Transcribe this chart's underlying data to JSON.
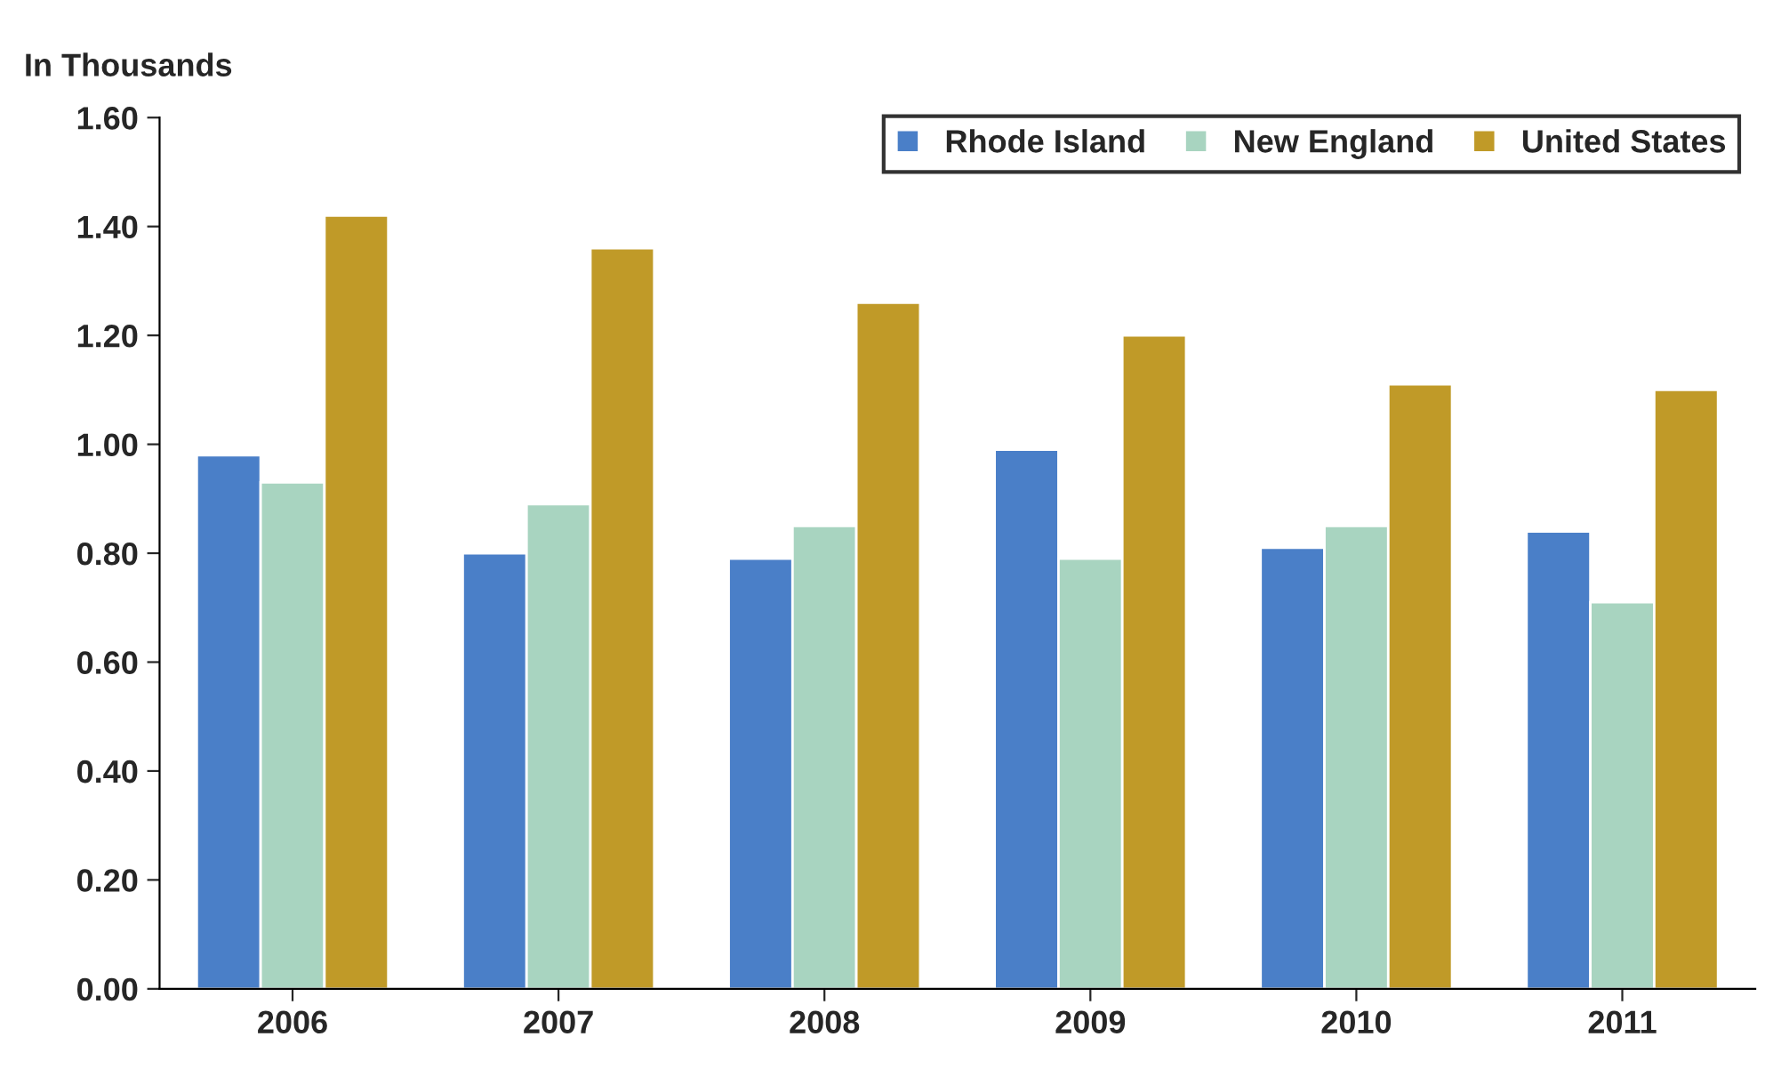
{
  "chart_data": {
    "type": "bar",
    "ylabel": "In Thousands",
    "categories": [
      "2006",
      "2007",
      "2008",
      "2009",
      "2010",
      "2011"
    ],
    "series": [
      {
        "name": "Rhode Island",
        "color": "#4a7fc8",
        "values": [
          0.98,
          0.8,
          0.79,
          0.99,
          0.81,
          0.84
        ]
      },
      {
        "name": "New England",
        "color": "#a8d4c0",
        "values": [
          0.93,
          0.89,
          0.85,
          0.79,
          0.85,
          0.71
        ]
      },
      {
        "name": "United States",
        "color": "#c09a28",
        "values": [
          1.42,
          1.36,
          1.26,
          1.2,
          1.11,
          1.1
        ]
      }
    ],
    "ylim": [
      0,
      1.6
    ],
    "yticks": [
      {
        "value": 0,
        "label": "0.00"
      },
      {
        "value": 0.2,
        "label": "0.20"
      },
      {
        "value": 0.4,
        "label": "0.40"
      },
      {
        "value": 0.6,
        "label": "0.60"
      },
      {
        "value": 0.8,
        "label": "0.80"
      },
      {
        "value": 1.0,
        "label": "1.00"
      },
      {
        "value": 1.2,
        "label": "1.20"
      },
      {
        "value": 1.4,
        "label": "1.40"
      },
      {
        "value": 1.6,
        "label": "1.60"
      }
    ],
    "grid": false,
    "legend": "top right"
  }
}
